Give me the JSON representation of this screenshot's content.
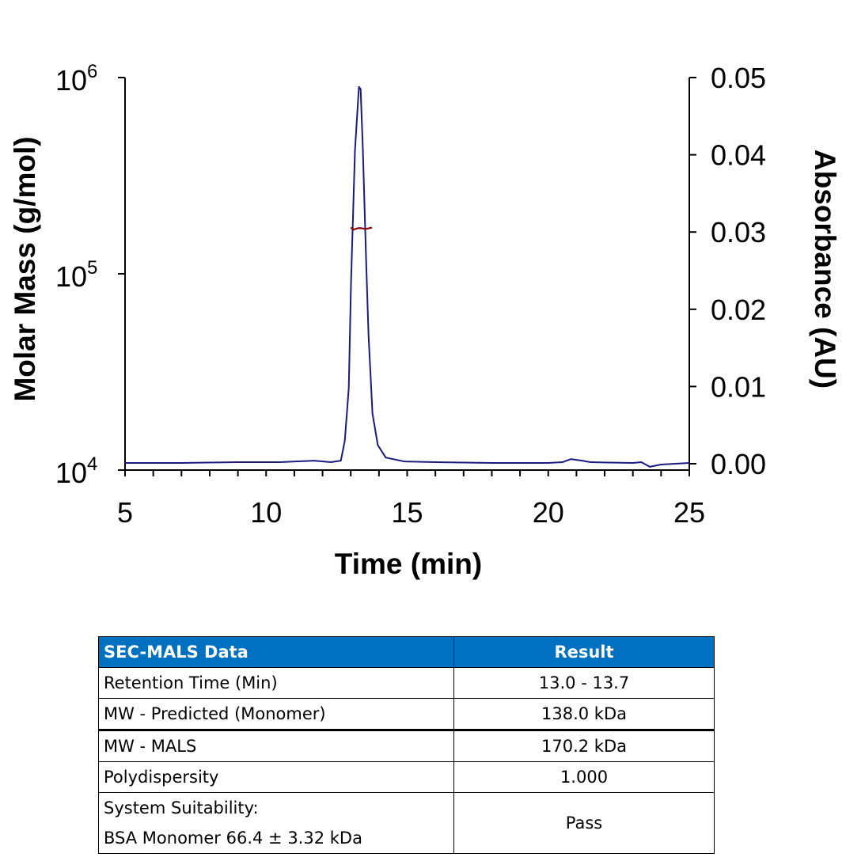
{
  "chart_data": {
    "type": "line",
    "xlabel": "Time (min)",
    "ylabel": "Molar Mass (g/mol)",
    "y2label": "Absorbance (AU)",
    "xlim": [
      5,
      25
    ],
    "xticks": [
      "5",
      "10",
      "15",
      "20",
      "25"
    ],
    "ylim": [
      10000,
      1000000
    ],
    "yscale": "log",
    "yticks": [
      {
        "base": "10",
        "exp": "4"
      },
      {
        "base": "10",
        "exp": "5"
      },
      {
        "base": "10",
        "exp": "6"
      }
    ],
    "y2lim": [
      0,
      0.05
    ],
    "y2ticks": [
      "0.00",
      "0.01",
      "0.02",
      "0.03",
      "0.04",
      "0.05"
    ],
    "grid": false,
    "series": [
      {
        "axis": "right",
        "color": "#1a1a80",
        "x": [
          5,
          7,
          9,
          10.5,
          11.7,
          12.3,
          12.65,
          12.79,
          12.93,
          13.01,
          13.15,
          13.29,
          13.35,
          13.43,
          13.54,
          13.63,
          13.77,
          13.96,
          14.24,
          14.89,
          16,
          18,
          20,
          20.5,
          20.8,
          21.2,
          21.5,
          23,
          23.3,
          23.6,
          24,
          25
        ],
        "y": [
          0.0001,
          0.0001,
          0.0002,
          0.0002,
          0.0004,
          0.0002,
          0.0004,
          0.003,
          0.0098,
          0.0235,
          0.0406,
          0.0488,
          0.0485,
          0.0406,
          0.0269,
          0.0167,
          0.0065,
          0.0024,
          0.0008,
          0.0003,
          0.0002,
          0.0001,
          0.0001,
          0.0002,
          0.0006,
          0.0004,
          0.0002,
          0.0001,
          0.0002,
          -0.0004,
          -0.0001,
          0.0001
        ]
      },
      {
        "axis": "left",
        "color": "#8b0000",
        "x": [
          13.0,
          13.1,
          13.2,
          13.3,
          13.4,
          13.5,
          13.6,
          13.75
        ],
        "y": [
          172000,
          168000,
          170000,
          171000,
          170500,
          169500,
          170000,
          172000
        ]
      }
    ]
  },
  "table": {
    "headers": [
      "SEC-MALS Data",
      "Result"
    ],
    "rows": [
      {
        "label": "Retention Time (Min)",
        "value": "13.0 - 13.7"
      },
      {
        "label": "MW - Predicted (Monomer)",
        "value": "138.0 kDa"
      },
      {
        "label": "MW - MALS",
        "value": "170.2 kDa"
      },
      {
        "label": "Polydispersity",
        "value": "1.000"
      },
      {
        "label": "System Suitability:",
        "label2": "BSA Monomer 66.4 ± 3.32 kDa",
        "value": "Pass"
      }
    ],
    "header_color": "#0070C0"
  }
}
